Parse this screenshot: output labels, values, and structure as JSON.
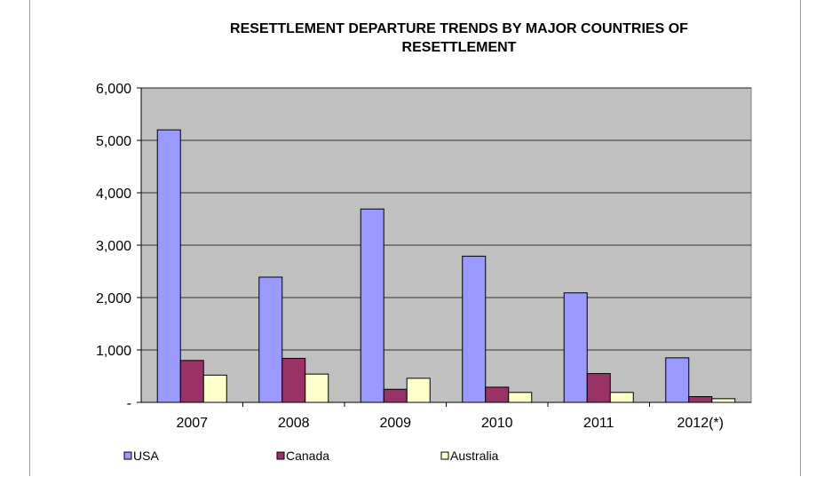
{
  "chart_data": {
    "type": "bar",
    "title_lines": [
      "RESETTLEMENT DEPARTURE TRENDS BY MAJOR COUNTRIES OF",
      "RESETTLEMENT"
    ],
    "categories": [
      "2007",
      "2008",
      "2009",
      "2010",
      "2011",
      "2012(*)"
    ],
    "series": [
      {
        "name": "USA",
        "color": "#9999ff",
        "values": [
          5200,
          2390,
          3690,
          2790,
          2090,
          850
        ]
      },
      {
        "name": "Canada",
        "color": "#993366",
        "values": [
          800,
          840,
          250,
          290,
          550,
          110
        ]
      },
      {
        "name": "Australia",
        "color": "#ffffcc",
        "values": [
          520,
          540,
          460,
          190,
          190,
          70
        ]
      }
    ],
    "ylim": [
      0,
      6000
    ],
    "yticks": [
      0,
      1000,
      2000,
      3000,
      4000,
      5000,
      6000
    ],
    "ytick_labels": [
      "-",
      "1,000",
      "2,000",
      "3,000",
      "4,000",
      "5,000",
      "6,000"
    ],
    "plot_background": "#c0c0c0",
    "grid": true,
    "legend_position": "bottom"
  }
}
